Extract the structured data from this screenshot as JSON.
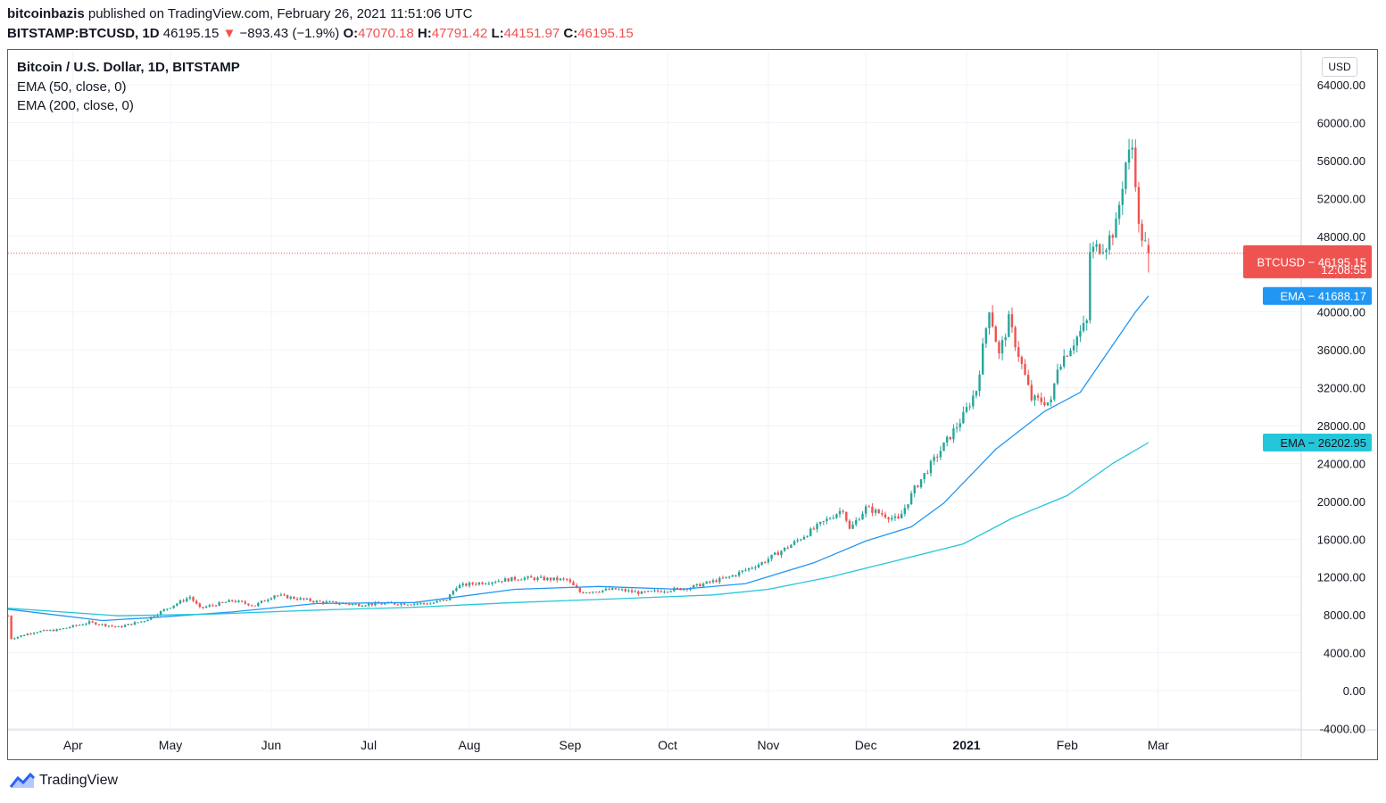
{
  "header": {
    "author": "bitcoinbazis",
    "published": "published on TradingView.com, February 26, 2021 11:51:06 UTC",
    "symbol": "BITSTAMP:BTCUSD, 1D",
    "last": "46195.15",
    "change": "−893.43 (−1.9%)",
    "o_label": "O:",
    "o": "47070.18",
    "h_label": "H:",
    "h": "47791.42",
    "l_label": "L:",
    "l": "44151.97",
    "c_label": "C:",
    "c": "46195.15"
  },
  "legend": {
    "title": "Bitcoin / U.S. Dollar, 1D, BITSTAMP",
    "ema50": "EMA (50, close, 0)",
    "ema200": "EMA (200, close, 0)"
  },
  "currency_button": "USD",
  "footer": {
    "brand": "TradingView"
  },
  "colors": {
    "up": "#26a69a",
    "down": "#ef5350",
    "ema50": "#2196f3",
    "ema200": "#26c6da",
    "grid": "#f0f3fa"
  },
  "chart_data": {
    "type": "candlestick",
    "y_ticks": [
      "64000.00",
      "60000.00",
      "56000.00",
      "52000.00",
      "48000.00",
      "44000.00",
      "40000.00",
      "36000.00",
      "32000.00",
      "28000.00",
      "24000.00",
      "20000.00",
      "16000.00",
      "12000.00",
      "8000.00",
      "4000.00",
      "0.00",
      "-4000.00"
    ],
    "y_tick_values": [
      64000,
      60000,
      56000,
      52000,
      48000,
      44000,
      40000,
      36000,
      32000,
      28000,
      24000,
      20000,
      16000,
      12000,
      8000,
      4000,
      0,
      -4000
    ],
    "ylim": [
      -4000,
      68000
    ],
    "x_ticks": [
      {
        "label": "Apr",
        "date": "2020-04-01",
        "bold": false
      },
      {
        "label": "May",
        "date": "2020-05-01",
        "bold": false
      },
      {
        "label": "Jun",
        "date": "2020-06-01",
        "bold": false
      },
      {
        "label": "Jul",
        "date": "2020-07-01",
        "bold": false
      },
      {
        "label": "Aug",
        "date": "2020-08-01",
        "bold": false
      },
      {
        "label": "Sep",
        "date": "2020-09-01",
        "bold": false
      },
      {
        "label": "Oct",
        "date": "2020-10-01",
        "bold": false
      },
      {
        "label": "Nov",
        "date": "2020-11-01",
        "bold": false
      },
      {
        "label": "Dec",
        "date": "2020-12-01",
        "bold": false
      },
      {
        "label": "2021",
        "date": "2021-01-01",
        "bold": true
      },
      {
        "label": "Feb",
        "date": "2021-02-01",
        "bold": false
      },
      {
        "label": "Mar",
        "date": "2021-03-01",
        "bold": false
      }
    ],
    "xlim": [
      "2020-03-12",
      "2021-04-14"
    ],
    "close_anchors": [
      [
        "2020-03-12",
        7900
      ],
      [
        "2020-03-13",
        5500
      ],
      [
        "2020-03-20",
        6200
      ],
      [
        "2020-03-27",
        6400
      ],
      [
        "2020-04-06",
        7200
      ],
      [
        "2020-04-15",
        6700
      ],
      [
        "2020-04-23",
        7400
      ],
      [
        "2020-04-30",
        8700
      ],
      [
        "2020-05-07",
        9900
      ],
      [
        "2020-05-10",
        8700
      ],
      [
        "2020-05-20",
        9500
      ],
      [
        "2020-05-27",
        9000
      ],
      [
        "2020-06-02",
        10100
      ],
      [
        "2020-06-15",
        9400
      ],
      [
        "2020-06-27",
        9100
      ],
      [
        "2020-07-10",
        9200
      ],
      [
        "2020-07-20",
        9200
      ],
      [
        "2020-07-25",
        9600
      ],
      [
        "2020-07-28",
        11000
      ],
      [
        "2020-08-02",
        11300
      ],
      [
        "2020-08-17",
        11900
      ],
      [
        "2020-08-31",
        11700
      ],
      [
        "2020-09-04",
        10400
      ],
      [
        "2020-09-15",
        10700
      ],
      [
        "2020-09-23",
        10300
      ],
      [
        "2020-10-08",
        10900
      ],
      [
        "2020-10-20",
        12000
      ],
      [
        "2020-10-30",
        13500
      ],
      [
        "2020-11-08",
        15400
      ],
      [
        "2020-11-18",
        17800
      ],
      [
        "2020-11-24",
        19200
      ],
      [
        "2020-11-26",
        17000
      ],
      [
        "2020-12-01",
        19300
      ],
      [
        "2020-12-11",
        18000
      ],
      [
        "2020-12-16",
        21300
      ],
      [
        "2020-12-26",
        26400
      ],
      [
        "2020-12-31",
        29000
      ],
      [
        "2021-01-04",
        31800
      ],
      [
        "2021-01-08",
        40500
      ],
      [
        "2021-01-11",
        35400
      ],
      [
        "2021-01-14",
        39100
      ],
      [
        "2021-01-21",
        30800
      ],
      [
        "2021-01-27",
        30400
      ],
      [
        "2021-01-29",
        34300
      ],
      [
        "2021-02-07",
        38900
      ],
      [
        "2021-02-08",
        46400
      ],
      [
        "2021-02-13",
        47200
      ],
      [
        "2021-02-16",
        49100
      ],
      [
        "2021-02-19",
        55800
      ],
      [
        "2021-02-21",
        57400
      ],
      [
        "2021-02-22",
        54100
      ],
      [
        "2021-02-23",
        48800
      ],
      [
        "2021-02-25",
        47100
      ],
      [
        "2021-02-26",
        46195
      ]
    ],
    "last_candle": {
      "date": "2021-02-26",
      "open": 47070.18,
      "high": 47791.42,
      "low": 44151.97,
      "close": 46195.15
    },
    "series": [
      {
        "name": "EMA (50, close, 0)",
        "last": 41688.17,
        "points": [
          [
            "2020-03-12",
            8600
          ],
          [
            "2020-04-10",
            7400
          ],
          [
            "2020-04-25",
            7700
          ],
          [
            "2020-05-20",
            8300
          ],
          [
            "2020-06-15",
            9200
          ],
          [
            "2020-07-15",
            9300
          ],
          [
            "2020-08-15",
            10700
          ],
          [
            "2020-09-10",
            11000
          ],
          [
            "2020-10-05",
            10700
          ],
          [
            "2020-10-25",
            11300
          ],
          [
            "2020-11-15",
            13500
          ],
          [
            "2020-12-01",
            15800
          ],
          [
            "2020-12-15",
            17300
          ],
          [
            "2020-12-25",
            19800
          ],
          [
            "2021-01-10",
            25500
          ],
          [
            "2021-01-25",
            29500
          ],
          [
            "2021-02-05",
            31500
          ],
          [
            "2021-02-15",
            36500
          ],
          [
            "2021-02-22",
            40000
          ],
          [
            "2021-02-26",
            41688.17
          ]
        ]
      },
      {
        "name": "EMA (200, close, 0)",
        "last": 26202.95,
        "points": [
          [
            "2020-03-12",
            8700
          ],
          [
            "2020-04-15",
            7900
          ],
          [
            "2020-05-15",
            8100
          ],
          [
            "2020-06-15",
            8500
          ],
          [
            "2020-07-15",
            8800
          ],
          [
            "2020-08-15",
            9300
          ],
          [
            "2020-09-15",
            9700
          ],
          [
            "2020-10-15",
            10100
          ],
          [
            "2020-11-01",
            10700
          ],
          [
            "2020-11-20",
            12000
          ],
          [
            "2020-12-10",
            13700
          ],
          [
            "2020-12-31",
            15500
          ],
          [
            "2021-01-15",
            18200
          ],
          [
            "2021-02-01",
            20600
          ],
          [
            "2021-02-15",
            24000
          ],
          [
            "2021-02-26",
            26202.95
          ]
        ]
      }
    ],
    "price_label": {
      "name": "BTCUSD",
      "value": "46195.15",
      "countdown": "12:08:55"
    },
    "ema50_label": {
      "name": "EMA",
      "value": "41688.17"
    },
    "ema200_label": {
      "name": "EMA",
      "value": "26202.95"
    }
  }
}
